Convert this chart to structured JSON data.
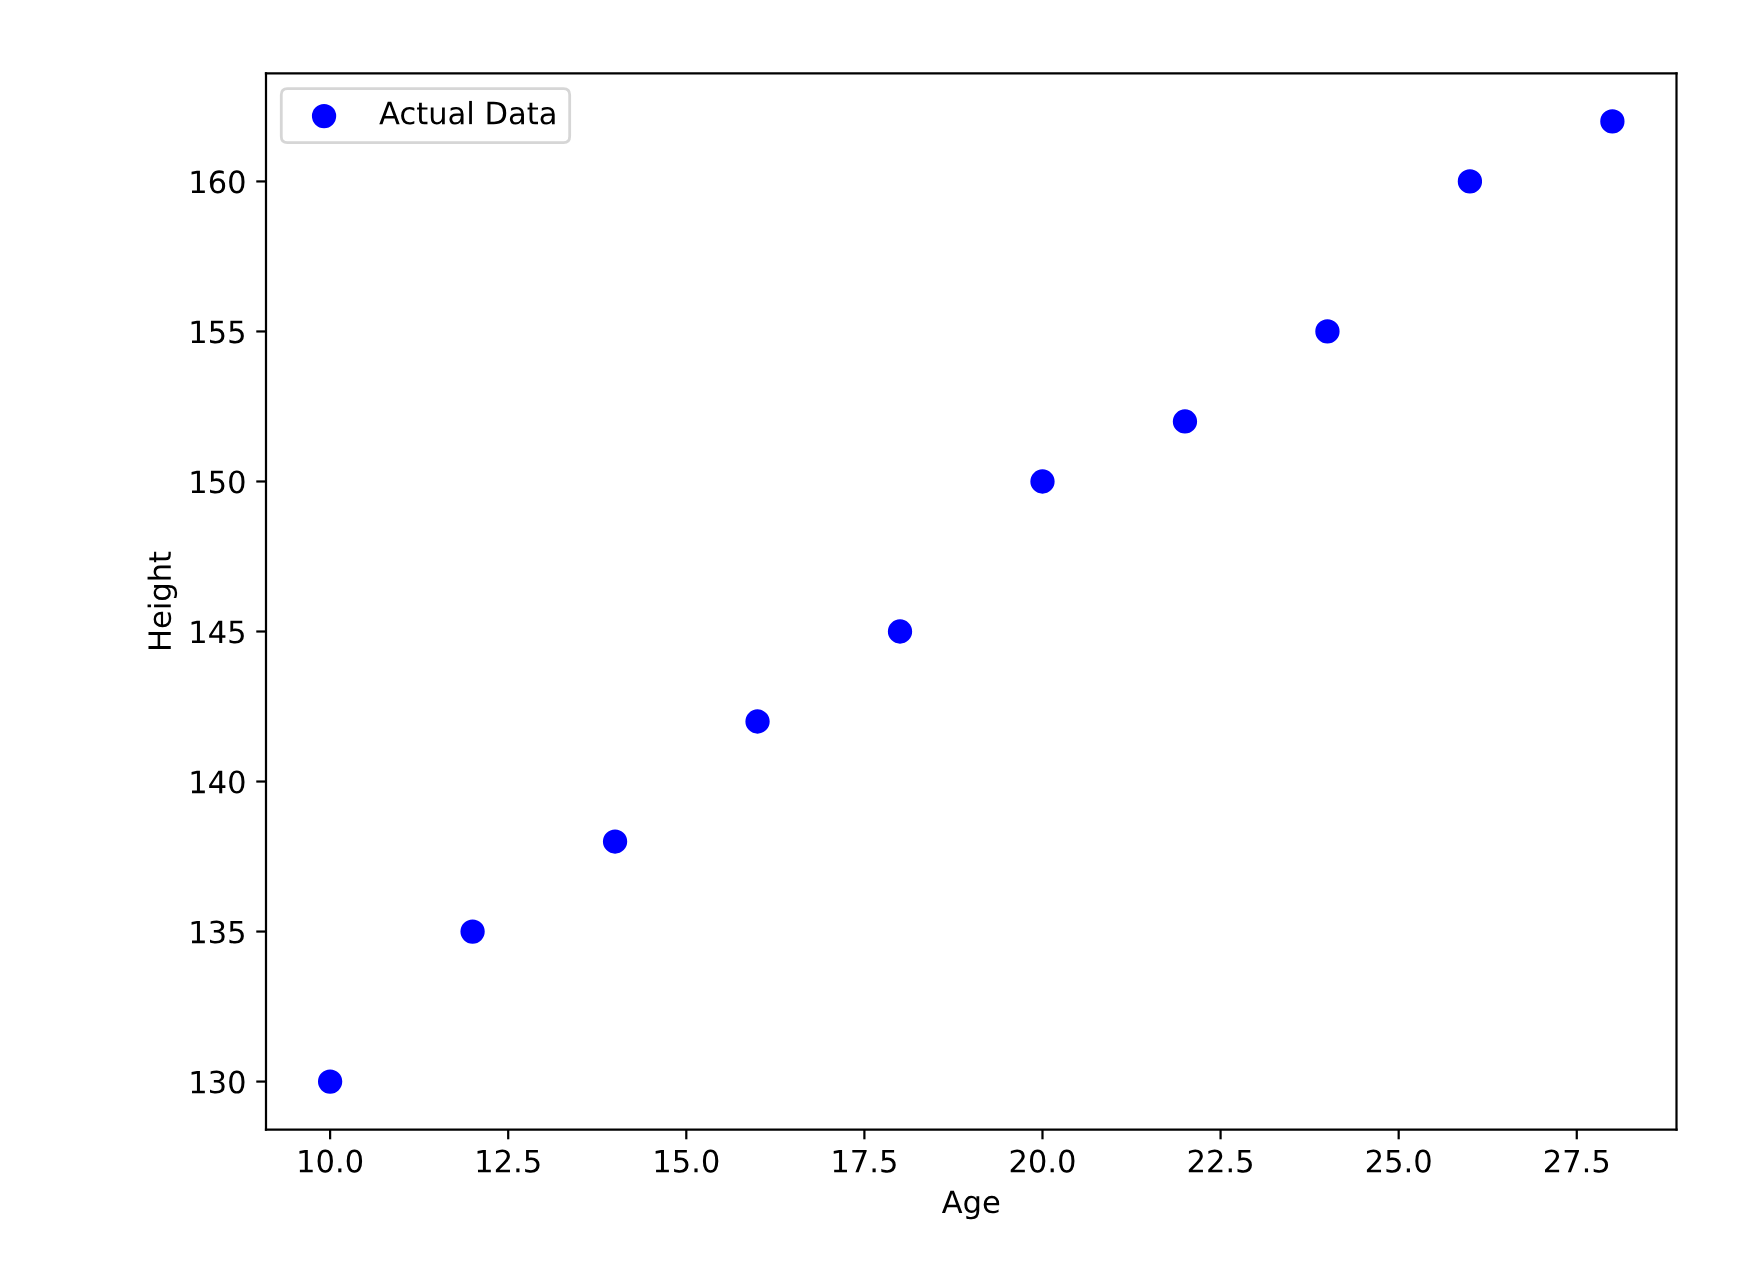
{
  "chart_data": {
    "type": "scatter",
    "xlabel": "Age",
    "ylabel": "Height",
    "x": [
      10,
      12,
      14,
      16,
      18,
      20,
      22,
      24,
      26,
      28
    ],
    "series": [
      {
        "name": "Actual Data",
        "color": "#0000ff",
        "values": [
          130,
          135,
          138,
          142,
          145,
          150,
          152,
          155,
          160,
          162
        ]
      }
    ],
    "xlim": [
      9.1,
      28.9
    ],
    "xticks": [
      {
        "value": 10,
        "label": "10.0"
      },
      12.5,
      {
        "value": 15,
        "label": "15.0"
      },
      17.5,
      {
        "value": 20,
        "label": "20.0"
      },
      22.5,
      {
        "value": 25,
        "label": "25.0"
      },
      27.5
    ],
    "ylim": [
      128.4,
      163.6
    ],
    "yticks": [
      130,
      135,
      140,
      145,
      150,
      155,
      160
    ],
    "marker": "circle",
    "legend": "top left",
    "grid": false
  }
}
